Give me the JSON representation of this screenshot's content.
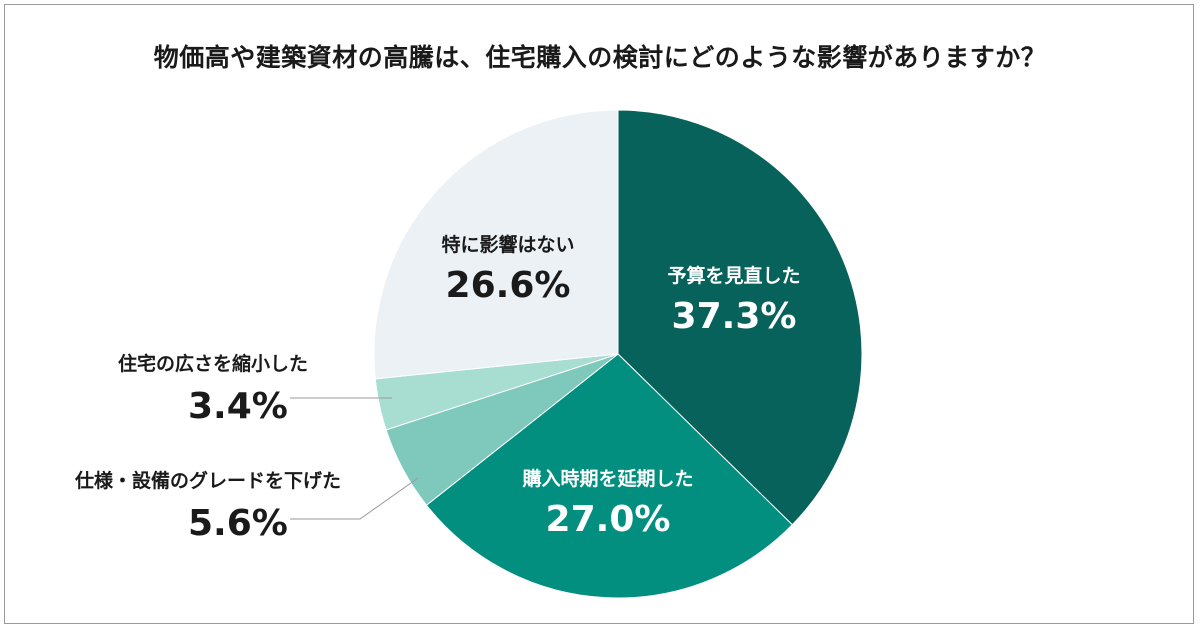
{
  "title": "物価高や建築資材の高騰は、住宅購入の検討にどのような影響がありますか？",
  "chart_data": {
    "type": "pie",
    "start": "12 o'clock",
    "direction": "clockwise",
    "slices": [
      {
        "label": "予算を見直した",
        "value": 37.3,
        "value_label": "37.3%",
        "color": "#07625b",
        "label_position": "inside"
      },
      {
        "label": "購入時期を延期した",
        "value": 27.0,
        "value_label": "27.0%",
        "color": "#038f7f",
        "label_position": "inside"
      },
      {
        "label": "仕様・設備のグレードを下げた",
        "value": 5.6,
        "value_label": "5.6%",
        "color": "#7fc9bc",
        "label_position": "outside"
      },
      {
        "label": "住宅の広さを縮小した",
        "value": 3.4,
        "value_label": "3.4%",
        "color": "#a8ddd2",
        "label_position": "outside"
      },
      {
        "label": "特に影響はない",
        "value": 26.6,
        "value_label": "26.6%",
        "color": "#ecf1f6",
        "label_position": "inside"
      }
    ]
  }
}
